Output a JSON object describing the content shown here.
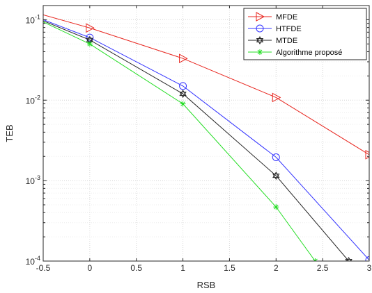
{
  "chart_data": {
    "type": "line",
    "xlabel": "RSB",
    "ylabel": "TEB",
    "xlim": [
      -0.5,
      3
    ],
    "ylim": [
      0.0001,
      0.15
    ],
    "y_scale": "log",
    "grid": true,
    "legend_position": "top-right",
    "x_ticks": [
      "-0.5",
      "0",
      "0.5",
      "1",
      "1.5",
      "2",
      "2.5",
      "3"
    ],
    "y_ticks": [
      {
        "mantissa": "10",
        "exp": "-1"
      },
      {
        "mantissa": "10",
        "exp": "-2"
      },
      {
        "mantissa": "10",
        "exp": "-3"
      },
      {
        "mantissa": "10",
        "exp": "-4"
      }
    ],
    "series": [
      {
        "name": "MFDE",
        "color": "#e8261f",
        "marker": "triangle-right",
        "x": [
          -0.5,
          0,
          1,
          2,
          3
        ],
        "y": [
          0.115,
          0.079,
          0.033,
          0.0108,
          0.0021
        ]
      },
      {
        "name": "HTFDE",
        "color": "#3333ff",
        "marker": "circle",
        "x": [
          -0.5,
          0,
          1,
          2,
          3
        ],
        "y": [
          0.1,
          0.06,
          0.015,
          0.00195,
          0.000103
        ]
      },
      {
        "name": "MTDE",
        "color": "#262626",
        "marker": "hexagram",
        "x": [
          -0.5,
          0,
          1,
          2,
          2.78
        ],
        "y": [
          0.097,
          0.056,
          0.012,
          0.00115,
          0.0001
        ]
      },
      {
        "name": "Algorithme proposé",
        "color": "#22dd22",
        "marker": "asterisk",
        "x": [
          -0.5,
          0,
          1,
          2,
          2.42
        ],
        "y": [
          0.094,
          0.05,
          0.009,
          0.00047,
          0.0001
        ]
      }
    ]
  }
}
